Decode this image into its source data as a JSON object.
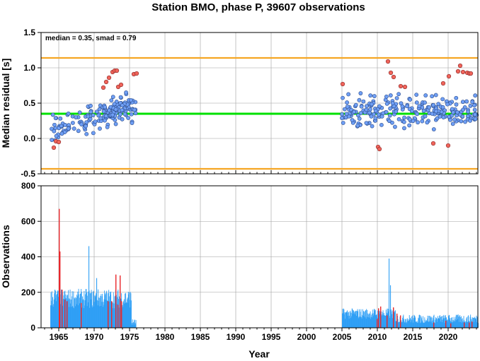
{
  "chart_data": [
    {
      "type": "scatter",
      "title": "Station BMO, phase P, 39607 observations",
      "ylabel": "Median residual [s]",
      "xlabel": "",
      "xlim": [
        1962.5,
        2024.2
      ],
      "ylim": [
        -0.5,
        1.5
      ],
      "x_ticks": [
        1965,
        1970,
        1975,
        1980,
        1985,
        1990,
        1995,
        2000,
        2005,
        2010,
        2015,
        2020
      ],
      "y_ticks": [
        "-0.5",
        "0.0",
        "0.5",
        "1.0",
        "1.5"
      ],
      "grid": true,
      "annotation": "median = 0.35, smad = 0.79",
      "lines": [
        {
          "name": "median",
          "y": 0.35,
          "color": "#00e000"
        },
        {
          "name": "upper bound",
          "y": 1.14,
          "color": "#f5a623"
        },
        {
          "name": "lower bound",
          "y": -0.43,
          "color": "#f5a623"
        }
      ],
      "colors": {
        "normal": "#6f9ff5",
        "outlier": "#f0645a",
        "edge": "#2a4a8a"
      },
      "segments": [
        {
          "x_range": [
            1964.0,
            1975.9
          ],
          "center": 0.3,
          "trend": 0.3,
          "spread": 0.27,
          "count": 170
        },
        {
          "x_range": [
            2005.0,
            2024.2
          ],
          "center": 0.38,
          "trend": 0.0,
          "spread": 0.3,
          "count": 240
        }
      ],
      "outliers": [
        [
          1964.3,
          -0.13
        ],
        [
          1964.6,
          -0.04
        ],
        [
          1965.0,
          -0.05
        ],
        [
          1971.3,
          0.72
        ],
        [
          1971.7,
          0.8
        ],
        [
          1972.1,
          0.86
        ],
        [
          1972.6,
          0.94
        ],
        [
          1972.9,
          0.96
        ],
        [
          1973.2,
          0.96
        ],
        [
          1973.4,
          0.73
        ],
        [
          1973.8,
          0.76
        ],
        [
          1975.6,
          0.91
        ],
        [
          1976.0,
          0.92
        ],
        [
          2005.1,
          0.77
        ],
        [
          2010.1,
          -0.12
        ],
        [
          2010.3,
          -0.15
        ],
        [
          2011.5,
          1.09
        ],
        [
          2011.9,
          0.93
        ],
        [
          2012.3,
          0.87
        ],
        [
          2013.3,
          0.74
        ],
        [
          2013.9,
          0.73
        ],
        [
          2017.9,
          -0.07
        ],
        [
          2019.3,
          0.78
        ],
        [
          2020.0,
          -0.1
        ],
        [
          2020.1,
          0.88
        ],
        [
          2021.4,
          0.95
        ],
        [
          2021.7,
          1.03
        ],
        [
          2022.1,
          0.94
        ],
        [
          2022.7,
          0.93
        ],
        [
          2023.0,
          0.92
        ],
        [
          2023.2,
          0.92
        ]
      ]
    },
    {
      "type": "bar",
      "title": "",
      "ylabel": "Observations",
      "xlabel": "Year",
      "xlim": [
        1962.5,
        2024.2
      ],
      "ylim": [
        0,
        800
      ],
      "x_ticks": [
        "1965",
        "1970",
        "1975",
        "1980",
        "1985",
        "1990",
        "1995",
        "2000",
        "2005",
        "2010",
        "2015",
        "2020"
      ],
      "y_ticks": [
        "0",
        "200",
        "400",
        "600",
        "800"
      ],
      "grid": true,
      "colors": {
        "normal": "#2f9ff5",
        "outlier": "#e8282b"
      },
      "segments": [
        {
          "x_range": [
            1963.8,
            1975.2
          ],
          "base": 165,
          "spread": 55
        },
        {
          "x_range": [
            1975.2,
            1975.9
          ],
          "base": 30,
          "spread": 20
        },
        {
          "x_range": [
            2005.0,
            2012.5
          ],
          "base": 80,
          "spread": 30
        },
        {
          "x_range": [
            2012.5,
            2024.2
          ],
          "base": 50,
          "spread": 25
        }
      ],
      "peaks": [
        [
          1964.4,
          215
        ],
        [
          1969.2,
          460
        ],
        [
          1970.3,
          280
        ],
        [
          2011.6,
          390
        ],
        [
          2011.8,
          240
        ]
      ],
      "red_bars": [
        [
          1965.0,
          670
        ],
        [
          1965.1,
          430
        ],
        [
          1965.4,
          215
        ],
        [
          1965.8,
          160
        ],
        [
          1966.1,
          150
        ],
        [
          1968.1,
          140
        ],
        [
          1971.9,
          150
        ],
        [
          1972.4,
          150
        ],
        [
          1973.0,
          300
        ],
        [
          1973.3,
          130
        ],
        [
          1973.6,
          295
        ],
        [
          1973.8,
          150
        ],
        [
          2009.9,
          50
        ],
        [
          2010.1,
          110
        ],
        [
          2010.4,
          120
        ],
        [
          2011.3,
          70
        ],
        [
          2012.2,
          115
        ],
        [
          2012.7,
          80
        ],
        [
          2013.2,
          70
        ],
        [
          2017.9,
          30
        ],
        [
          2019.6,
          40
        ],
        [
          2020.3,
          25
        ],
        [
          2022.2,
          30
        ],
        [
          2022.9,
          30
        ],
        [
          2023.3,
          35
        ]
      ]
    }
  ]
}
